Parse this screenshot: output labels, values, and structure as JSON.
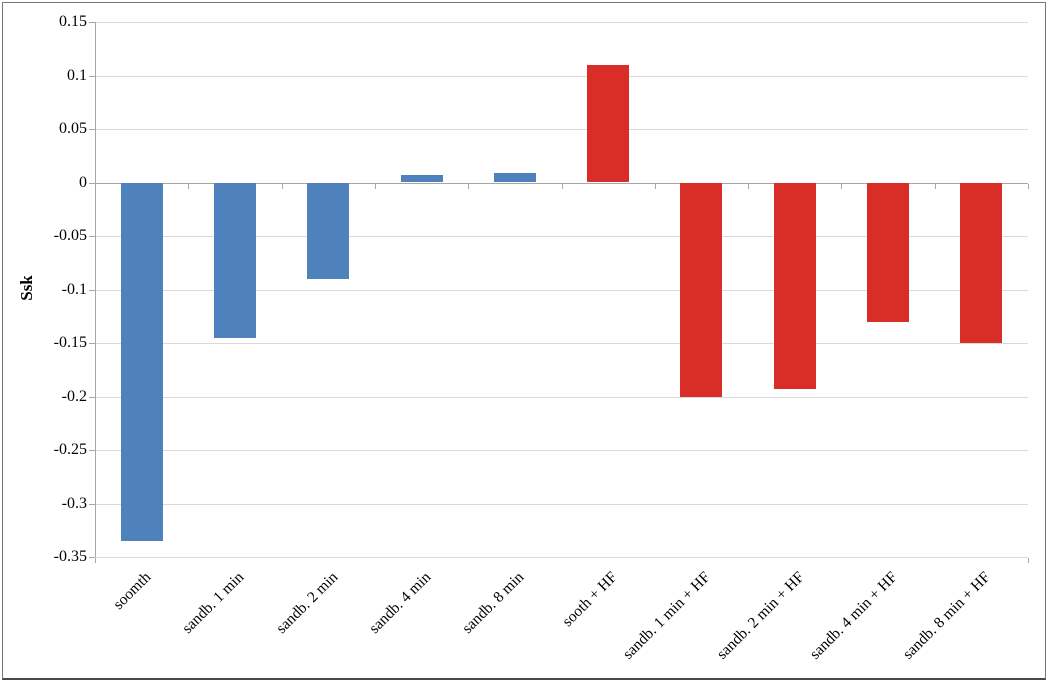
{
  "figure": {
    "background": "#ffffff",
    "border_color": "#767676"
  },
  "chart_data": {
    "type": "bar",
    "title": "",
    "ylabel": "Ssk",
    "xlabel": "",
    "categories": [
      "soomth",
      "sandb. 1 min",
      "sandb. 2 min",
      "sandb. 4 min",
      "sandb. 8 min",
      "sooth + HF",
      "sandb. 1 min + HF",
      "sandb. 2 min + HF",
      "sandb. 4 min + HF",
      "sandb. 8 min + HF"
    ],
    "values": [
      -0.335,
      -0.145,
      -0.09,
      0.007,
      0.009,
      0.11,
      -0.2,
      -0.193,
      -0.13,
      -0.15
    ],
    "bar_colors": [
      "#4f81bd",
      "#4f81bd",
      "#4f81bd",
      "#4f81bd",
      "#4f81bd",
      "#d92d27",
      "#d92d27",
      "#d92d27",
      "#d92d27",
      "#d92d27"
    ],
    "series_colors": {
      "untreated": "#4f81bd",
      "hf_treated": "#d92d27"
    },
    "ylim": [
      -0.35,
      0.15
    ],
    "ytick_step": 0.05,
    "ytick_labels": [
      "0.15",
      "0.1",
      "0.05",
      "0",
      "-0.05",
      "-0.1",
      "-0.15",
      "-0.2",
      "-0.25",
      "-0.3",
      "-0.35"
    ],
    "grid": "horizontal",
    "gridline_color": "#d9d9d9",
    "axis_color": "#a6a6a6",
    "legend_position": "none"
  }
}
